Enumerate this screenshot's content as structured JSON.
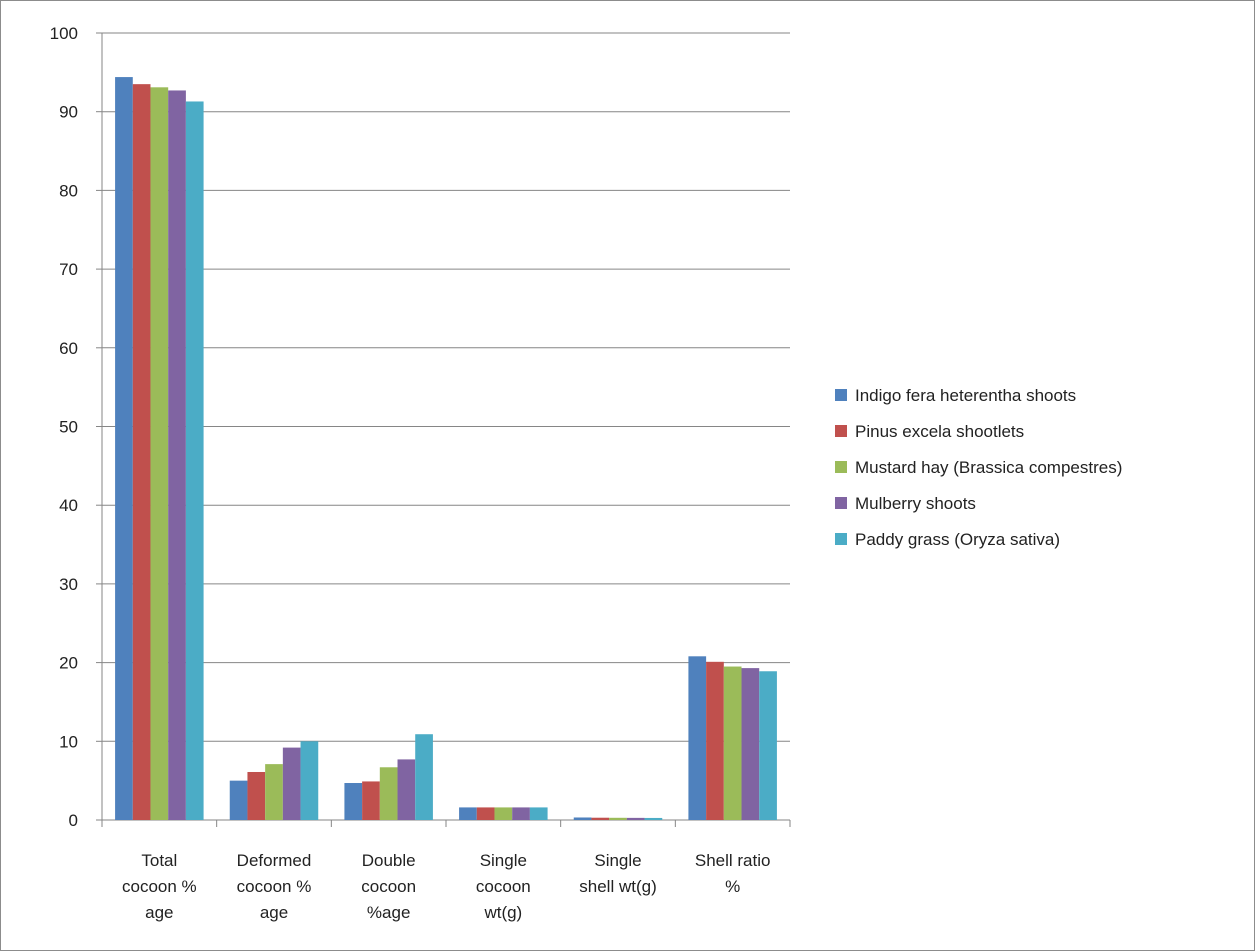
{
  "chart_data": {
    "type": "bar",
    "title": "",
    "xlabel": "",
    "ylabel": "",
    "ylim": [
      0,
      100
    ],
    "yticks": [
      0,
      10,
      20,
      30,
      40,
      50,
      60,
      70,
      80,
      90,
      100
    ],
    "grid": "horizontal",
    "legend_position": "right",
    "categories": [
      [
        "Total",
        "cocoon %",
        "age"
      ],
      [
        "Deformed",
        "cocoon %",
        "age"
      ],
      [
        "Double",
        "cocoon",
        "%age"
      ],
      [
        "Single",
        "cocoon",
        "wt(g)"
      ],
      [
        "Single",
        "shell wt(g)"
      ],
      [
        "Shell ratio",
        "%"
      ]
    ],
    "series": [
      {
        "name": "Indigo fera heterentha shoots",
        "color": "#4f81bd",
        "values": [
          94.4,
          5.0,
          4.7,
          1.6,
          0.32,
          20.8
        ]
      },
      {
        "name": "Pinus excela shootlets",
        "color": "#c0504d",
        "values": [
          93.5,
          6.1,
          4.9,
          1.6,
          0.29,
          20.1
        ]
      },
      {
        "name": "Mustard hay (Brassica compestres)",
        "color": "#9bbb59",
        "values": [
          93.1,
          7.1,
          6.7,
          1.6,
          0.28,
          19.5
        ]
      },
      {
        "name": "Mulberry shoots",
        "color": "#8064a2",
        "values": [
          92.7,
          9.2,
          7.7,
          1.6,
          0.27,
          19.3
        ]
      },
      {
        "name": "Paddy grass (Oryza sativa)",
        "color": "#4bacc6",
        "values": [
          91.3,
          10.0,
          10.9,
          1.6,
          0.26,
          18.9
        ]
      }
    ]
  }
}
